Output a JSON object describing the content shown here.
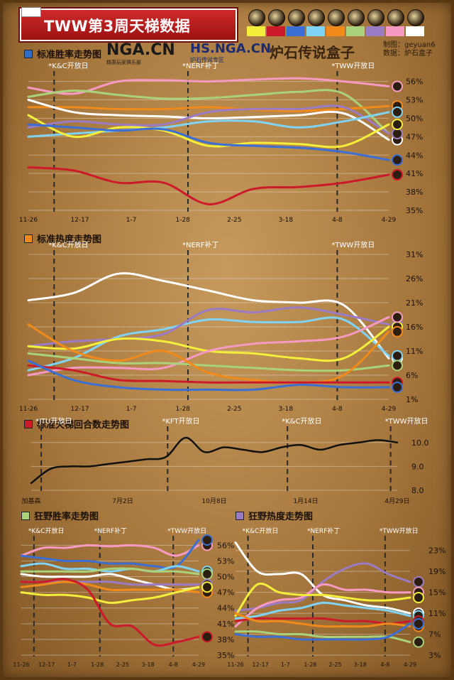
{
  "header": {
    "title": "TWW第3周天梯数据",
    "credit_made_by": "制图：geyuan6",
    "credit_data": "数据：炉石盒子"
  },
  "logos": {
    "nga": "NGA.CN",
    "nga_sub": "精英玩家俱乐部",
    "hs": "HS.NGA.CN",
    "hs_sub": "炉石传说专区",
    "box": "炉石传说盒子"
  },
  "class_icons": [
    "druid-icon",
    "hunter-icon",
    "mage-icon",
    "paladin-icon",
    "priest-icon",
    "rogue-icon",
    "shaman-icon",
    "warlock-icon",
    "warrior-icon"
  ],
  "class_colors": [
    "#f3ef3a",
    "#cc1a2a",
    "#3b6fd4",
    "#7fd3f5",
    "#f08a1a",
    "#a9d27a",
    "#9b7bc4",
    "#f79ac3",
    "#ffffff"
  ],
  "sections": {
    "std_win": {
      "label": "标准胜率走势图",
      "color": "#2f6fc9"
    },
    "std_pop": {
      "label": "标准热度走势图",
      "color": "#f08a1a"
    },
    "turns": {
      "label": "标准天梯回合数走势图",
      "color": "#cc1a2a"
    },
    "wild_win": {
      "label": "狂野胜率走势图",
      "color": "#a9d27a"
    },
    "wild_pop": {
      "label": "狂野热度走势图",
      "color": "#9b7bc4"
    }
  },
  "chart_data": [
    {
      "type": "line",
      "title": "标准胜率走势图",
      "x_ticks": [
        "11-26",
        "12-17",
        "1-7",
        "1-28",
        "2-25",
        "3-18",
        "4-8",
        "4-29"
      ],
      "y_ticks": [
        "56%",
        "53%",
        "50%",
        "47%",
        "44%",
        "41%",
        "38%",
        "35%"
      ],
      "ylim": [
        35,
        57
      ],
      "annotations": [
        {
          "label": "*K&C开放日",
          "x": 0.5
        },
        {
          "label": "*NERF补丁",
          "x": 3.1
        },
        {
          "label": "*TWW开放日",
          "x": 6.0
        }
      ],
      "series": [
        {
          "color": "#f79ac3",
          "values": [
            55.0,
            54.0,
            56.0,
            56.2,
            56.0,
            56.3,
            56.5,
            56.0,
            55.2
          ]
        },
        {
          "color": "#a9d27a",
          "values": [
            53.5,
            54.5,
            53.8,
            53.2,
            53.3,
            53.8,
            54.3,
            54.0,
            47.5
          ]
        },
        {
          "color": "#f08a1a",
          "values": [
            51.8,
            51.8,
            51.5,
            51.5,
            51.8,
            51.4,
            51.2,
            51.5,
            52.0
          ]
        },
        {
          "color": "#ffffff",
          "values": [
            53.0,
            51.0,
            50.5,
            50.3,
            50.0,
            50.2,
            50.5,
            50.8,
            46.5
          ]
        },
        {
          "color": "#9b7bc4",
          "values": [
            48.5,
            49.5,
            49.0,
            49.0,
            51.0,
            51.5,
            51.5,
            51.8,
            47.5
          ]
        },
        {
          "color": "#7fd3f5",
          "values": [
            47.0,
            47.5,
            48.0,
            48.5,
            49.5,
            49.5,
            48.5,
            49.5,
            51.0
          ]
        },
        {
          "color": "#f3ef3a",
          "values": [
            50.5,
            47.0,
            48.5,
            48.0,
            45.5,
            46.0,
            45.8,
            45.5,
            49.0
          ]
        },
        {
          "color": "#3b6fd4",
          "values": [
            49.0,
            48.5,
            48.0,
            48.2,
            46.0,
            45.5,
            45.2,
            44.5,
            43.2
          ]
        },
        {
          "color": "#cc1a2a",
          "values": [
            42.0,
            41.5,
            39.5,
            39.5,
            36.0,
            38.5,
            38.8,
            39.5,
            40.8
          ]
        }
      ]
    },
    {
      "type": "line",
      "title": "标准热度走势图",
      "x_ticks": [
        "11-26",
        "12-17",
        "1-7",
        "1-28",
        "2-25",
        "3-18",
        "4-8",
        "4-29"
      ],
      "y_ticks": [
        "31%",
        "26%",
        "21%",
        "16%",
        "11%",
        "6%",
        "1%"
      ],
      "ylim": [
        1,
        31
      ],
      "annotations": [
        {
          "label": "*K&C开放日",
          "x": 0.5
        },
        {
          "label": "*NERF补丁",
          "x": 3.1
        },
        {
          "label": "*TWW开放日",
          "x": 6.0
        }
      ],
      "series": [
        {
          "color": "#ffffff",
          "values": [
            21.5,
            23.0,
            27.0,
            25.5,
            23.5,
            21.5,
            21.0,
            20.5,
            9.5
          ]
        },
        {
          "color": "#7fd3f5",
          "values": [
            7.0,
            9.5,
            14.0,
            15.5,
            17.5,
            17.0,
            17.0,
            17.5,
            10.0
          ]
        },
        {
          "color": "#9b7bc4",
          "values": [
            12.0,
            13.0,
            13.5,
            14.5,
            19.5,
            19.0,
            20.0,
            18.5,
            16.5
          ]
        },
        {
          "color": "#f3ef3a",
          "values": [
            12.0,
            11.5,
            13.5,
            13.0,
            11.0,
            10.5,
            9.5,
            9.5,
            16.0
          ]
        },
        {
          "color": "#f79ac3",
          "values": [
            6.0,
            7.5,
            7.5,
            7.5,
            11.0,
            12.5,
            13.0,
            14.0,
            18.0
          ]
        },
        {
          "color": "#a9d27a",
          "values": [
            10.5,
            9.5,
            8.5,
            8.5,
            8.0,
            7.5,
            7.0,
            7.0,
            8.0
          ]
        },
        {
          "color": "#f08a1a",
          "values": [
            16.5,
            11.0,
            9.0,
            11.0,
            6.5,
            5.0,
            4.5,
            6.0,
            15.0
          ]
        },
        {
          "color": "#cc1a2a",
          "values": [
            8.0,
            7.0,
            5.0,
            4.8,
            4.5,
            4.5,
            4.5,
            4.5,
            4.5
          ]
        },
        {
          "color": "#3b6fd4",
          "values": [
            9.0,
            5.0,
            3.5,
            3.0,
            3.0,
            3.0,
            4.0,
            3.5,
            3.5
          ]
        }
      ]
    },
    {
      "type": "line",
      "title": "标准天梯回合数走势图",
      "x_ticks": [
        "加基森",
        "7月2日",
        "10月8日",
        "1月14日",
        "4月29日"
      ],
      "y_ticks": [
        "10.0",
        "9.0",
        "8.0"
      ],
      "ylim": [
        8,
        10.5
      ],
      "annotations": [
        {
          "label": "*JTU开放日",
          "x": 0.3
        },
        {
          "label": "*KFT开放日",
          "x": 4.1
        },
        {
          "label": "*K&C开放日",
          "x": 7.7
        },
        {
          "label": "*TWW开放日",
          "x": 10.8
        }
      ],
      "series": [
        {
          "color": "#111111",
          "values": [
            8.3,
            8.9,
            9.0,
            9.0,
            9.1,
            9.2,
            9.3,
            9.4,
            10.2,
            9.6,
            9.8,
            9.7,
            9.6,
            9.8,
            9.9,
            9.7,
            9.9,
            10.0,
            10.1,
            10.0
          ]
        }
      ]
    },
    {
      "type": "line",
      "title": "狂野胜率走势图",
      "x_ticks": [
        "11-26",
        "12-17",
        "1-7",
        "1-28",
        "2-25",
        "3-18",
        "4-8",
        "4-29"
      ],
      "y_ticks": [
        "56%",
        "53%",
        "50%",
        "47%",
        "44%",
        "41%",
        "38%",
        "35%"
      ],
      "ylim": [
        35,
        57
      ],
      "annotations": [
        {
          "label": "*K&C开放日",
          "x": 0.5
        },
        {
          "label": "*NERF补丁",
          "x": 3.1
        },
        {
          "label": "*TWW开放日",
          "x": 6.0
        }
      ],
      "series": [
        {
          "color": "#f79ac3",
          "values": [
            54.0,
            55.5,
            55.5,
            56.0,
            55.8,
            56.0,
            55.5,
            54.0,
            56.0
          ]
        },
        {
          "color": "#3b6fd4",
          "values": [
            54.0,
            53.5,
            53.0,
            53.0,
            52.5,
            52.5,
            52.0,
            52.0,
            57.0
          ]
        },
        {
          "color": "#7fd3f5",
          "values": [
            52.0,
            52.5,
            51.5,
            51.5,
            51.0,
            51.5,
            51.0,
            52.0,
            51.0
          ]
        },
        {
          "color": "#a9d27a",
          "values": [
            51.0,
            51.0,
            51.0,
            51.0,
            51.5,
            51.5,
            51.0,
            51.0,
            50.5
          ]
        },
        {
          "color": "#ffffff",
          "values": [
            50.5,
            50.0,
            50.0,
            50.0,
            50.5,
            49.5,
            48.5,
            47.5,
            48.0
          ]
        },
        {
          "color": "#9b7bc4",
          "values": [
            49.0,
            49.0,
            49.0,
            49.0,
            49.0,
            48.5,
            48.5,
            48.5,
            48.5
          ]
        },
        {
          "color": "#f08a1a",
          "values": [
            48.0,
            48.5,
            49.0,
            48.5,
            47.5,
            47.5,
            47.5,
            47.5,
            47.0
          ]
        },
        {
          "color": "#f3ef3a",
          "values": [
            47.0,
            46.5,
            46.5,
            46.0,
            45.0,
            45.5,
            46.0,
            47.0,
            48.0
          ]
        },
        {
          "color": "#cc1a2a",
          "values": [
            49.0,
            49.0,
            49.5,
            47.5,
            41.0,
            40.5,
            37.0,
            37.5,
            38.5
          ]
        }
      ]
    },
    {
      "type": "line",
      "title": "狂野热度走势图",
      "x_ticks": [
        "11-26",
        "12-17",
        "1-7",
        "1-28",
        "2-25",
        "3-18",
        "4-8",
        "4-29"
      ],
      "y_ticks": [
        "23%",
        "19%",
        "15%",
        "11%",
        "7%",
        "3%"
      ],
      "ylim": [
        3,
        25
      ],
      "annotations": [
        {
          "label": "*K&C开放日",
          "x": 0.5
        },
        {
          "label": "*NERF补丁",
          "x": 3.1
        },
        {
          "label": "*TWW开放日",
          "x": 6.0
        }
      ],
      "series": [
        {
          "color": "#ffffff",
          "values": [
            24.5,
            19.0,
            18.5,
            18.5,
            14.5,
            13.5,
            12.5,
            12.0,
            11.0
          ]
        },
        {
          "color": "#9b7bc4",
          "values": [
            11.5,
            12.0,
            13.0,
            13.5,
            17.0,
            19.5,
            20.5,
            18.5,
            17.0
          ]
        },
        {
          "color": "#f79ac3",
          "values": [
            8.5,
            12.0,
            13.5,
            14.0,
            16.5,
            15.5,
            15.5,
            15.0,
            15.0
          ]
        },
        {
          "color": "#f3ef3a",
          "values": [
            10.5,
            16.5,
            15.0,
            14.5,
            14.5,
            14.0,
            13.5,
            13.5,
            14.0
          ]
        },
        {
          "color": "#7fd3f5",
          "values": [
            10.0,
            10.5,
            11.5,
            12.0,
            13.0,
            12.5,
            12.0,
            11.5,
            10.5
          ]
        },
        {
          "color": "#cc1a2a",
          "values": [
            9.5,
            10.0,
            10.0,
            10.0,
            10.0,
            9.5,
            9.5,
            9.0,
            9.5
          ]
        },
        {
          "color": "#f08a1a",
          "values": [
            11.0,
            9.5,
            9.5,
            9.0,
            8.5,
            8.5,
            8.5,
            9.0,
            8.5
          ]
        },
        {
          "color": "#a9d27a",
          "values": [
            7.5,
            7.5,
            7.0,
            7.0,
            6.5,
            6.5,
            6.5,
            6.5,
            5.5
          ]
        },
        {
          "color": "#3b6fd4",
          "values": [
            7.0,
            6.5,
            6.5,
            6.0,
            6.0,
            6.0,
            6.0,
            6.5,
            9.0
          ]
        }
      ]
    }
  ]
}
